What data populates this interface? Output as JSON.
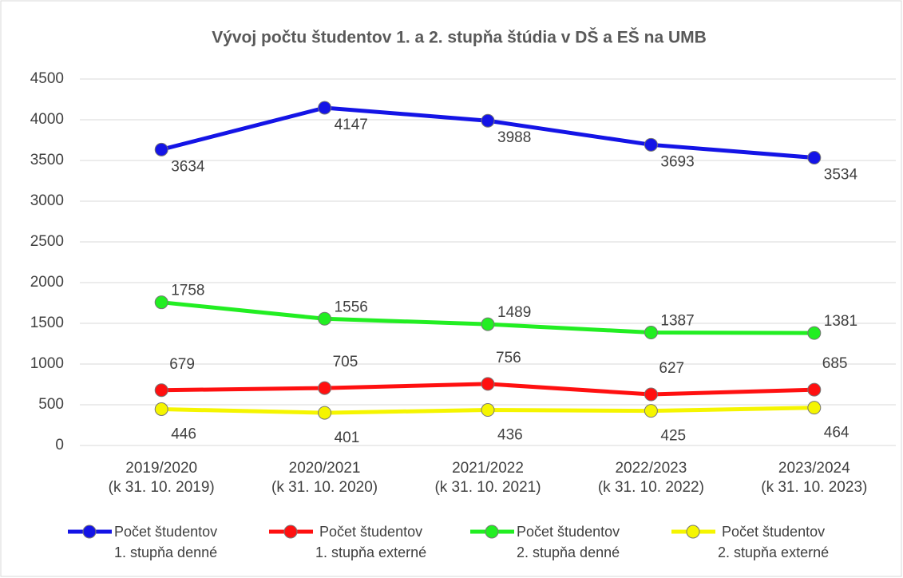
{
  "chart_data": {
    "type": "line",
    "title": "Vývoj počtu študentov 1. a 2. stupňa štúdia v DŠ a EŠ na UMB",
    "categories": [
      "2019/2020\n(k 31. 10. 2019)",
      "2020/2021\n(k 31. 10. 2020)",
      "2021/2022\n(k 31. 10. 2021)",
      "2022/2023\n(k 31. 10. 2022)",
      "2023/2024\n(k 31. 10. 2023)"
    ],
    "series": [
      {
        "name": "Počet študentov\n1. stupňa denné",
        "color": "#1414e6",
        "values": [
          3634,
          4147,
          3988,
          3693,
          3534
        ]
      },
      {
        "name": "Počet študentov\n1. stupňa externé",
        "color": "#ff1010",
        "values": [
          679,
          705,
          756,
          627,
          685
        ]
      },
      {
        "name": "Počet študentov\n2. stupňa denné",
        "color": "#22ee22",
        "values": [
          1758,
          1556,
          1489,
          1387,
          1381
        ]
      },
      {
        "name": "Počet študentov\n2. stupňa externé",
        "color": "#f5f500",
        "values": [
          446,
          401,
          436,
          425,
          464
        ]
      }
    ],
    "ylim": [
      0,
      4500
    ],
    "yticks": [
      0,
      500,
      1000,
      1500,
      2000,
      2500,
      3000,
      3500,
      4000,
      4500
    ],
    "grid": true,
    "legend": "bottom"
  }
}
